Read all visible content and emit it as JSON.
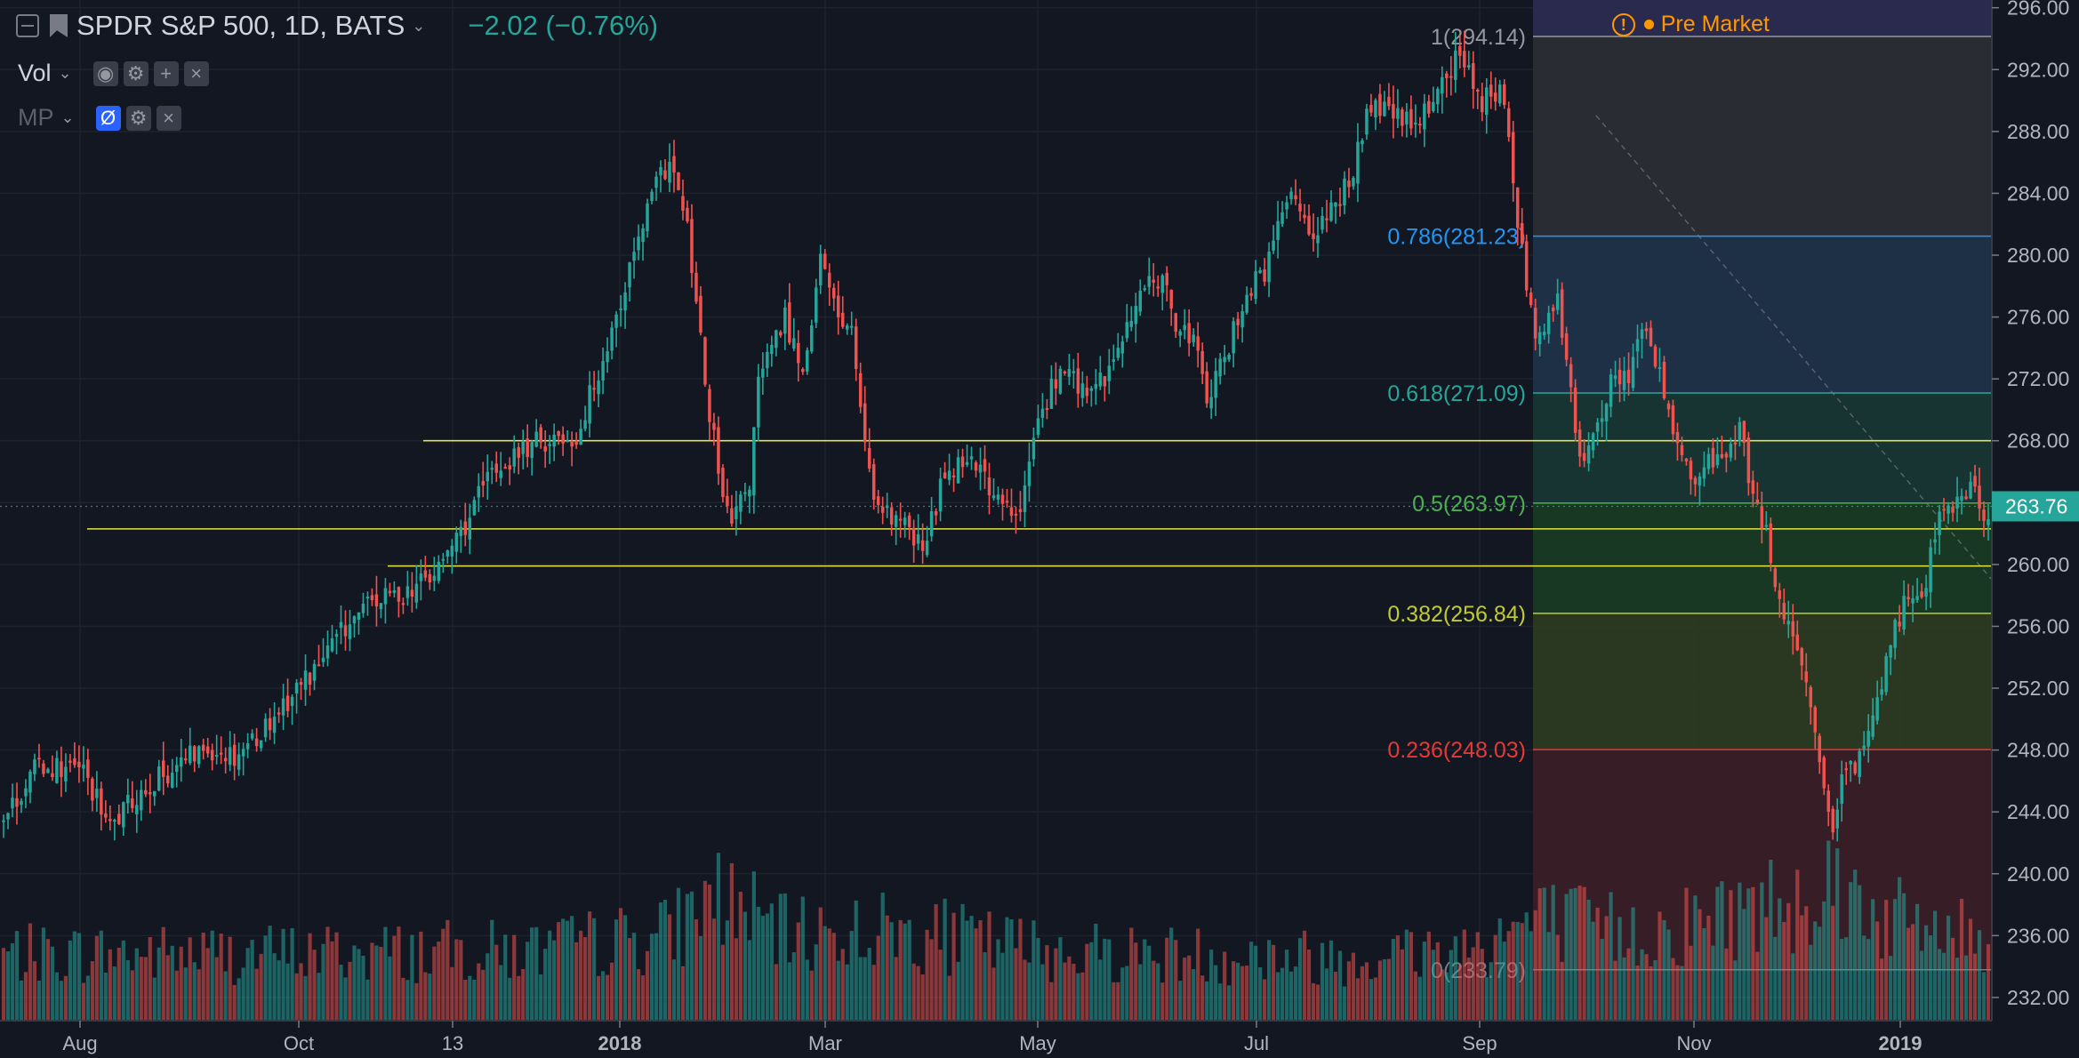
{
  "header": {
    "symbol": "SPDR S&P 500, 1D, BATS",
    "change": "−2.02 (−0.76%)",
    "vol_label": "Vol",
    "mp_label": "MP",
    "market_status": "Pre Market"
  },
  "colors": {
    "up": "#26a69a",
    "down": "#ef5350",
    "background": "#131722",
    "grid": "#1e222d",
    "hline": "#e5e545",
    "accent": "#ff9800"
  },
  "chart_data": {
    "type": "candlestick",
    "title": "SPDR S&P 500, 1D, BATS",
    "ylim": [
      230.5,
      296.5
    ],
    "y_ticks": [
      "296.00",
      "292.00",
      "288.00",
      "284.00",
      "280.00",
      "276.00",
      "272.00",
      "268.00",
      "264.00",
      "260.00",
      "256.00",
      "252.00",
      "248.00",
      "244.00",
      "240.00",
      "236.00",
      "232.00"
    ],
    "x_ticks": [
      "Aug",
      "Oct",
      "13",
      "2018",
      "Mar",
      "May",
      "Jul",
      "Sep",
      "Nov",
      "2019"
    ],
    "last_price": "263.76",
    "grid": true,
    "fib_retracement": [
      {
        "level": "1",
        "price": 294.14,
        "label": "1(294.14)",
        "color": "#9598a1",
        "fill": "#2a2a4e"
      },
      {
        "level": "0.786",
        "price": 281.23,
        "label": "0.786(281.23)",
        "color": "#2196f3",
        "fill": "#2b2d35"
      },
      {
        "level": "0.618",
        "price": 271.09,
        "label": "0.618(271.09)",
        "color": "#26a69a",
        "fill": "#1d3248"
      },
      {
        "level": "0.5",
        "price": 263.97,
        "label": "0.5(263.97)",
        "color": "#4caf50",
        "fill": "#173634"
      },
      {
        "level": "0.382",
        "price": 256.84,
        "label": "0.382(256.84)",
        "color": "#c0ca33",
        "fill": "#183a24"
      },
      {
        "level": "0.236",
        "price": 248.03,
        "label": "0.236(248.03)",
        "color": "#e53935",
        "fill": "#2c3a22"
      },
      {
        "level": "0",
        "price": 233.79,
        "label": "0(233.79)",
        "color": "#787b86",
        "fill": "#391e27"
      }
    ],
    "horizontal_lines": [
      268.0,
      262.3,
      259.9
    ],
    "price_path": [
      [
        0,
        243.6
      ],
      [
        8,
        247.1
      ],
      [
        18,
        246.6
      ],
      [
        24,
        242.9
      ],
      [
        31,
        245.4
      ],
      [
        37,
        246.6
      ],
      [
        46,
        248.2
      ],
      [
        52,
        247.7
      ],
      [
        58,
        249.2
      ],
      [
        63,
        251.0
      ],
      [
        70,
        253.2
      ],
      [
        77,
        255.9
      ],
      [
        83,
        257.5
      ],
      [
        90,
        258.2
      ],
      [
        97,
        259.3
      ],
      [
        104,
        262.6
      ],
      [
        110,
        266.0
      ],
      [
        117,
        267.4
      ],
      [
        123,
        268.2
      ],
      [
        129,
        268.2
      ],
      [
        137,
        275.2
      ],
      [
        146,
        283.8
      ],
      [
        150,
        286.2
      ],
      [
        154,
        281.6
      ],
      [
        158,
        271.8
      ],
      [
        162,
        264.0
      ],
      [
        164,
        262.5
      ],
      [
        168,
        265.3
      ],
      [
        170,
        271.7
      ],
      [
        176,
        276.0
      ],
      [
        180,
        272.5
      ],
      [
        184,
        279.7
      ],
      [
        187,
        276.8
      ],
      [
        191,
        274.9
      ],
      [
        196,
        263.4
      ],
      [
        202,
        262.8
      ],
      [
        207,
        260.8
      ],
      [
        212,
        266.0
      ],
      [
        218,
        267.2
      ],
      [
        224,
        264.0
      ],
      [
        229,
        263.0
      ],
      [
        232,
        268.3
      ],
      [
        236,
        271.5
      ],
      [
        240,
        272.7
      ],
      [
        244,
        270.7
      ],
      [
        249,
        272.6
      ],
      [
        255,
        276.5
      ],
      [
        259,
        278.9
      ],
      [
        261,
        278.0
      ],
      [
        264,
        275.8
      ],
      [
        268,
        274.5
      ],
      [
        271,
        270.8
      ],
      [
        275,
        273.1
      ],
      [
        279,
        277.1
      ],
      [
        284,
        278.9
      ],
      [
        290,
        284.4
      ],
      [
        295,
        281.5
      ],
      [
        300,
        282.9
      ],
      [
        304,
        285.8
      ],
      [
        308,
        289.7
      ],
      [
        314,
        289.0
      ],
      [
        318,
        288.0
      ],
      [
        323,
        290.9
      ],
      [
        327,
        292.6
      ],
      [
        330,
        292.1
      ],
      [
        333,
        290.0
      ],
      [
        337,
        290.7
      ],
      [
        339,
        287.3
      ],
      [
        342,
        280.1
      ],
      [
        345,
        275.0
      ],
      [
        350,
        276.8
      ],
      [
        352,
        273.1
      ],
      [
        355,
        266.3
      ],
      [
        358,
        269.0
      ],
      [
        362,
        271.5
      ],
      [
        366,
        272.5
      ],
      [
        369,
        275.2
      ],
      [
        373,
        272.2
      ],
      [
        376,
        269.0
      ],
      [
        380,
        265.0
      ],
      [
        384,
        266.5
      ],
      [
        388,
        267.0
      ],
      [
        391,
        269.2
      ],
      [
        394,
        263.9
      ],
      [
        397,
        262.0
      ],
      [
        401,
        256.5
      ],
      [
        405,
        253.2
      ],
      [
        409,
        247.6
      ],
      [
        412,
        242.0
      ],
      [
        414,
        245.8
      ],
      [
        417,
        247.2
      ],
      [
        420,
        249.2
      ],
      [
        422,
        251.6
      ],
      [
        425,
        254.9
      ],
      [
        428,
        257.7
      ],
      [
        431,
        258.4
      ],
      [
        433,
        258.9
      ],
      [
        435,
        262.3
      ],
      [
        438,
        263.6
      ],
      [
        441,
        264.3
      ],
      [
        443,
        265.0
      ],
      [
        445,
        263.8
      ],
      [
        447,
        263.3
      ]
    ],
    "volume_envelope": [
      [
        0,
        1.0
      ],
      [
        50,
        1.0
      ],
      [
        120,
        1.05
      ],
      [
        150,
        1.3
      ],
      [
        160,
        1.9
      ],
      [
        165,
        1.7
      ],
      [
        175,
        1.3
      ],
      [
        200,
        1.35
      ],
      [
        230,
        1.1
      ],
      [
        260,
        1.0
      ],
      [
        300,
        0.95
      ],
      [
        330,
        1.1
      ],
      [
        345,
        1.5
      ],
      [
        370,
        1.3
      ],
      [
        395,
        1.7
      ],
      [
        412,
        2.1
      ],
      [
        425,
        1.5
      ],
      [
        447,
        1.2
      ]
    ]
  }
}
